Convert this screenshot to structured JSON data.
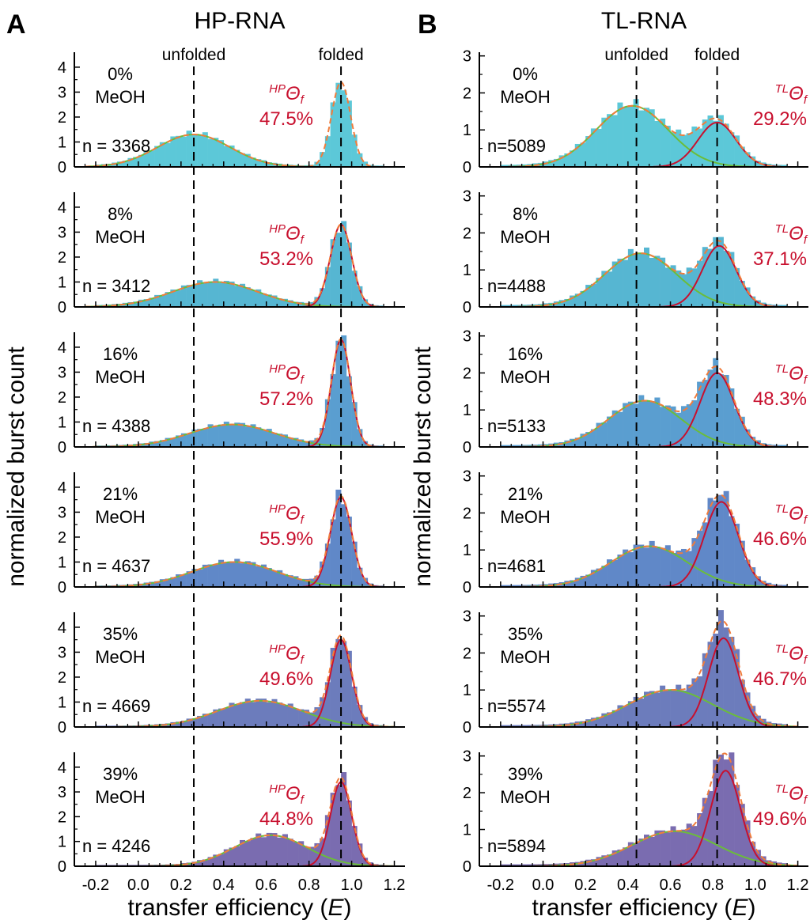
{
  "figure": {
    "ylabel": "normalized burst count",
    "xlabel_prefix": "transfer efficiency (",
    "xlabel_var": "E",
    "xlabel_suffix": ")",
    "meoh_label": "MeOH",
    "ref_labels": {
      "unfolded": "unfolded",
      "folded": "folded"
    },
    "colors": {
      "fit_total": "#f07c3c",
      "fit_unfolded": "#6bbd3a",
      "fit_folded": "#c8102e",
      "theta_text": "#c8102e",
      "axis": "#000000",
      "guide": "#000000"
    }
  },
  "panels": [
    {
      "letter": "A",
      "title": "HP-RNA",
      "theta_sup": "HP",
      "ymax": 4,
      "yticks": [
        "0",
        "1",
        "2",
        "3",
        "4"
      ],
      "ref_unfolded": 0.26,
      "ref_folded": 0.95,
      "conditions": [
        {
          "meoh": "0%",
          "n_text": "n = 3368",
          "theta": "47.5%",
          "hist_color": "#5cc8d8",
          "u": {
            "a": 1.3,
            "m": 0.26,
            "s": 0.17
          },
          "f": {
            "a": 3.4,
            "m": 0.95,
            "s": 0.045
          },
          "show_f": false
        },
        {
          "meoh": "8%",
          "n_text": "n = 3412",
          "theta": "53.2%",
          "hist_color": "#56b6d2",
          "u": {
            "a": 1.0,
            "m": 0.36,
            "s": 0.2
          },
          "f": {
            "a": 3.3,
            "m": 0.95,
            "s": 0.05
          },
          "show_f": true
        },
        {
          "meoh": "16%",
          "n_text": "n = 4388",
          "theta": "57.2%",
          "hist_color": "#5a9ed0",
          "u": {
            "a": 0.9,
            "m": 0.44,
            "s": 0.2
          },
          "f": {
            "a": 4.3,
            "m": 0.95,
            "s": 0.045
          },
          "show_f": true
        },
        {
          "meoh": "21%",
          "n_text": "n = 4637",
          "theta": "55.9%",
          "hist_color": "#6088c8",
          "u": {
            "a": 1.0,
            "m": 0.45,
            "s": 0.2
          },
          "f": {
            "a": 3.6,
            "m": 0.95,
            "s": 0.05
          },
          "show_f": true
        },
        {
          "meoh": "35%",
          "n_text": "n = 4669",
          "theta": "49.6%",
          "hist_color": "#6c7cbc",
          "u": {
            "a": 1.05,
            "m": 0.57,
            "s": 0.2
          },
          "f": {
            "a": 3.5,
            "m": 0.95,
            "s": 0.05
          },
          "show_f": true
        },
        {
          "meoh": "39%",
          "n_text": "n = 4246",
          "theta": "44.8%",
          "hist_color": "#7a6cb0",
          "u": {
            "a": 1.25,
            "m": 0.62,
            "s": 0.17
          },
          "f": {
            "a": 3.4,
            "m": 0.95,
            "s": 0.05
          },
          "show_f": true
        }
      ]
    },
    {
      "letter": "B",
      "title": "TL-RNA",
      "theta_sup": "TL",
      "ymax": 3,
      "yticks": [
        "0",
        "1",
        "2",
        "3"
      ],
      "ref_unfolded": 0.44,
      "ref_folded": 0.82,
      "conditions": [
        {
          "meoh": "0%",
          "n_text": "n=5089",
          "theta": "29.2%",
          "hist_color": "#5cc8d8",
          "u": {
            "a": 1.65,
            "m": 0.42,
            "s": 0.17
          },
          "f": {
            "a": 1.2,
            "m": 0.82,
            "s": 0.09
          },
          "show_f": true
        },
        {
          "meoh": "8%",
          "n_text": "n=4488",
          "theta": "37.1%",
          "hist_color": "#56b6d2",
          "u": {
            "a": 1.45,
            "m": 0.46,
            "s": 0.17
          },
          "f": {
            "a": 1.65,
            "m": 0.83,
            "s": 0.08
          },
          "show_f": true
        },
        {
          "meoh": "16%",
          "n_text": "n=5133",
          "theta": "48.3%",
          "hist_color": "#5a9ed0",
          "u": {
            "a": 1.25,
            "m": 0.48,
            "s": 0.17
          },
          "f": {
            "a": 2.0,
            "m": 0.82,
            "s": 0.08
          },
          "show_f": true
        },
        {
          "meoh": "21%",
          "n_text": "n=4681",
          "theta": "46.6%",
          "hist_color": "#6088c8",
          "u": {
            "a": 1.1,
            "m": 0.5,
            "s": 0.18
          },
          "f": {
            "a": 2.3,
            "m": 0.84,
            "s": 0.08
          },
          "show_f": true
        },
        {
          "meoh": "35%",
          "n_text": "n=5574",
          "theta": "46.7%",
          "hist_color": "#6c7cbc",
          "u": {
            "a": 1.0,
            "m": 0.6,
            "s": 0.2
          },
          "f": {
            "a": 2.4,
            "m": 0.85,
            "s": 0.07
          },
          "show_f": true
        },
        {
          "meoh": "39%",
          "n_text": "n=5894",
          "theta": "49.6%",
          "hist_color": "#7a6cb0",
          "u": {
            "a": 0.95,
            "m": 0.62,
            "s": 0.2
          },
          "f": {
            "a": 2.6,
            "m": 0.86,
            "s": 0.07
          },
          "show_f": true
        }
      ]
    }
  ],
  "chart_data": {
    "type": "histogram-grid",
    "panels": [
      {
        "title": "HP-RNA",
        "xlabel": "transfer efficiency (E)",
        "ylabel": "normalized burst count",
        "xlim": [
          -0.3,
          1.25
        ],
        "xticks": [
          -0.2,
          0.0,
          0.2,
          0.4,
          0.6,
          0.8,
          1.0,
          1.2
        ],
        "ylim": [
          0,
          4.6
        ],
        "reference_lines": {
          "unfolded": 0.26,
          "folded": 0.95
        },
        "series": [
          {
            "meoh": "0%",
            "n": 3368,
            "theta_folded": "47.5%"
          },
          {
            "meoh": "8%",
            "n": 3412,
            "theta_folded": "53.2%"
          },
          {
            "meoh": "16%",
            "n": 4388,
            "theta_folded": "57.2%"
          },
          {
            "meoh": "21%",
            "n": 4637,
            "theta_folded": "55.9%"
          },
          {
            "meoh": "35%",
            "n": 4669,
            "theta_folded": "49.6%"
          },
          {
            "meoh": "39%",
            "n": 4246,
            "theta_folded": "44.8%"
          }
        ]
      },
      {
        "title": "TL-RNA",
        "xlabel": "transfer efficiency (E)",
        "ylabel": "normalized burst count",
        "xlim": [
          -0.3,
          1.25
        ],
        "xticks": [
          -0.2,
          0.0,
          0.2,
          0.4,
          0.6,
          0.8,
          1.0,
          1.2
        ],
        "ylim": [
          0,
          3.1
        ],
        "reference_lines": {
          "unfolded": 0.44,
          "folded": 0.82
        },
        "series": [
          {
            "meoh": "0%",
            "n": 5089,
            "theta_folded": "29.2%"
          },
          {
            "meoh": "8%",
            "n": 4488,
            "theta_folded": "37.1%"
          },
          {
            "meoh": "16%",
            "n": 5133,
            "theta_folded": "48.3%"
          },
          {
            "meoh": "21%",
            "n": 4681,
            "theta_folded": "46.6%"
          },
          {
            "meoh": "35%",
            "n": 5574,
            "theta_folded": "46.7%"
          },
          {
            "meoh": "39%",
            "n": 5894,
            "theta_folded": "49.6%"
          }
        ]
      }
    ]
  }
}
